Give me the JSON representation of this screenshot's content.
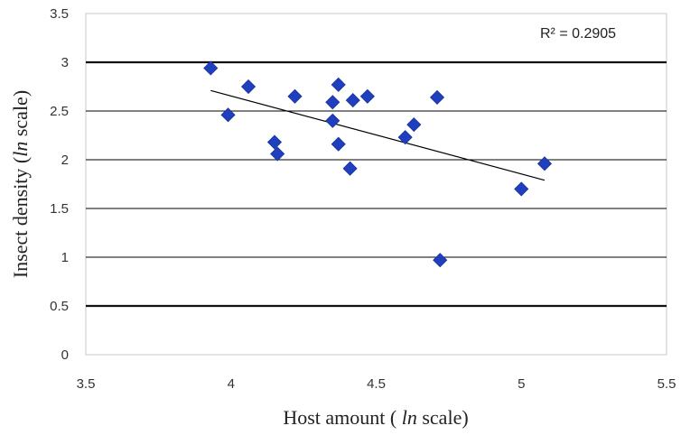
{
  "chart_data": {
    "type": "scatter",
    "title": "",
    "xlabel_parts": [
      "Host amount ( ",
      "ln",
      " scale)"
    ],
    "ylabel_parts": [
      "Insect density (",
      "ln",
      " scale)"
    ],
    "xlim": [
      3.5,
      5.5
    ],
    "ylim": [
      0,
      3.5
    ],
    "xticks": [
      "3.5",
      "4",
      "4.5",
      "5",
      "5.5"
    ],
    "yticks": [
      "0",
      "0.5",
      "1",
      "1.5",
      "2",
      "2.5",
      "3",
      "3.5"
    ],
    "grid": "horizontal",
    "annotation": "R² = 0.2905",
    "marker_color": "#1f3fbf",
    "points": [
      {
        "x": 3.93,
        "y": 2.94
      },
      {
        "x": 3.99,
        "y": 2.46
      },
      {
        "x": 4.06,
        "y": 2.75
      },
      {
        "x": 4.15,
        "y": 2.18
      },
      {
        "x": 4.16,
        "y": 2.06
      },
      {
        "x": 4.22,
        "y": 2.65
      },
      {
        "x": 4.35,
        "y": 2.59
      },
      {
        "x": 4.35,
        "y": 2.4
      },
      {
        "x": 4.37,
        "y": 2.77
      },
      {
        "x": 4.37,
        "y": 2.16
      },
      {
        "x": 4.41,
        "y": 1.91
      },
      {
        "x": 4.42,
        "y": 2.61
      },
      {
        "x": 4.47,
        "y": 2.65
      },
      {
        "x": 4.6,
        "y": 2.23
      },
      {
        "x": 4.63,
        "y": 2.36
      },
      {
        "x": 4.71,
        "y": 2.64
      },
      {
        "x": 4.72,
        "y": 0.97
      },
      {
        "x": 5.0,
        "y": 1.7
      },
      {
        "x": 5.08,
        "y": 1.96
      }
    ],
    "trendline": {
      "x": [
        3.93,
        5.08
      ],
      "y": [
        2.71,
        1.79
      ]
    }
  }
}
